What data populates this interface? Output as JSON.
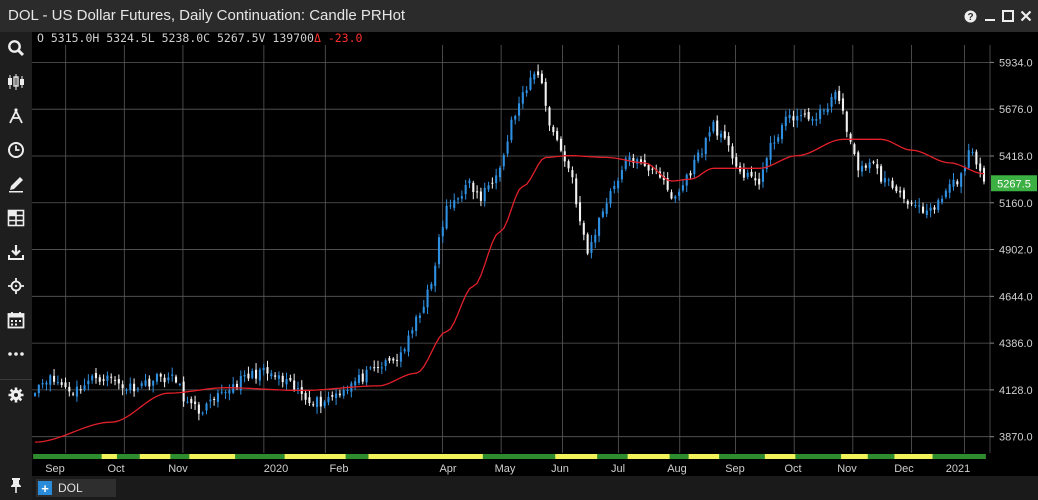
{
  "window": {
    "title": "DOL - US Dollar Futures, Daily Continuation: Candle PRHot"
  },
  "ohlc_bar": {
    "text": "O 5315.0H 5324.5L 5238.0C 5267.5V 139700",
    "delta_symbol": "Δ",
    "change": "-23.0"
  },
  "sidebar": {
    "tools": [
      "search-icon",
      "candles-icon",
      "studies-icon",
      "clock-icon",
      "pen-icon",
      "grid-icon",
      "download-icon",
      "crosshair-icon",
      "calendar-icon",
      "more-icon",
      "settings-icon",
      "pin-icon"
    ]
  },
  "tabs": [
    {
      "label": "DOL",
      "add_symbol": "+"
    }
  ],
  "colors": {
    "up_candle": "#2f8fe0",
    "down_candle": "#f2f2f2",
    "moving_average": "#e0202a",
    "grid": "#5a5a5a",
    "last_price_bg": "#3cb043",
    "session_green": "#2e8b2e",
    "session_yellow": "#f2f25a"
  },
  "chart_data": {
    "type": "candlestick",
    "title": "DOL - US Dollar Futures, Daily Continuation: Candle PRHot",
    "ylim": [
      3780,
      6030
    ],
    "y_ticks": [
      "5934.0",
      "5676.0",
      "5418.0",
      "5160.0",
      "4902.0",
      "4644.0",
      "4386.0",
      "4128.0",
      "3870.0"
    ],
    "x_labels": [
      "Sep",
      "Oct",
      "Nov",
      "2020",
      "Feb",
      "Apr",
      "May",
      "Jun",
      "Jul",
      "Aug",
      "Sep",
      "Oct",
      "Nov",
      "Dec",
      "2021"
    ],
    "last_price": "5267.5",
    "legend": "none",
    "grid": true,
    "close_path": [
      [
        0,
        4140
      ],
      [
        3,
        4195
      ],
      [
        6,
        4170
      ],
      [
        10,
        4120
      ],
      [
        13,
        4160
      ],
      [
        16,
        4200
      ],
      [
        20,
        4190
      ],
      [
        24,
        4140
      ],
      [
        28,
        4160
      ],
      [
        33,
        4200
      ],
      [
        37,
        4180
      ],
      [
        40,
        4050
      ],
      [
        43,
        4010
      ],
      [
        47,
        4060
      ],
      [
        51,
        4140
      ],
      [
        55,
        4190
      ],
      [
        59,
        4230
      ],
      [
        63,
        4200
      ],
      [
        67,
        4150
      ],
      [
        71,
        4090
      ],
      [
        75,
        4060
      ],
      [
        79,
        4110
      ],
      [
        83,
        4160
      ],
      [
        87,
        4210
      ],
      [
        91,
        4260
      ],
      [
        95,
        4300
      ],
      [
        98,
        4400
      ],
      [
        101,
        4560
      ],
      [
        104,
        4700
      ],
      [
        106,
        4950
      ],
      [
        108,
        5120
      ],
      [
        111,
        5200
      ],
      [
        114,
        5260
      ],
      [
        117,
        5180
      ],
      [
        120,
        5300
      ],
      [
        123,
        5420
      ],
      [
        125,
        5600
      ],
      [
        127,
        5700
      ],
      [
        129,
        5780
      ],
      [
        131,
        5890
      ],
      [
        133,
        5820
      ],
      [
        135,
        5600
      ],
      [
        138,
        5450
      ],
      [
        141,
        5300
      ],
      [
        143,
        5050
      ],
      [
        145,
        4880
      ],
      [
        147,
        5000
      ],
      [
        150,
        5180
      ],
      [
        153,
        5300
      ],
      [
        156,
        5420
      ],
      [
        158,
        5380
      ],
      [
        160,
        5350
      ],
      [
        163,
        5360
      ],
      [
        165,
        5260
      ],
      [
        167,
        5180
      ],
      [
        169,
        5220
      ],
      [
        171,
        5300
      ],
      [
        174,
        5420
      ],
      [
        176,
        5500
      ],
      [
        178,
        5600
      ],
      [
        180,
        5520
      ],
      [
        183,
        5420
      ],
      [
        186,
        5300
      ],
      [
        190,
        5280
      ],
      [
        193,
        5460
      ],
      [
        196,
        5590
      ],
      [
        199,
        5640
      ],
      [
        203,
        5620
      ],
      [
        207,
        5660
      ],
      [
        210,
        5780
      ],
      [
        213,
        5580
      ],
      [
        216,
        5320
      ],
      [
        219,
        5400
      ],
      [
        222,
        5300
      ],
      [
        225,
        5250
      ],
      [
        228,
        5200
      ],
      [
        231,
        5130
      ],
      [
        234,
        5090
      ],
      [
        237,
        5150
      ],
      [
        240,
        5250
      ],
      [
        243,
        5300
      ],
      [
        245,
        5460
      ],
      [
        247,
        5360
      ],
      [
        249,
        5260
      ]
    ],
    "ma_path": [
      [
        0,
        3840
      ],
      [
        20,
        3950
      ],
      [
        35,
        4110
      ],
      [
        50,
        4140
      ],
      [
        70,
        4125
      ],
      [
        90,
        4150
      ],
      [
        100,
        4220
      ],
      [
        108,
        4450
      ],
      [
        115,
        4700
      ],
      [
        122,
        5000
      ],
      [
        128,
        5250
      ],
      [
        134,
        5410
      ],
      [
        140,
        5420
      ],
      [
        150,
        5410
      ],
      [
        160,
        5380
      ],
      [
        167,
        5280
      ],
      [
        172,
        5290
      ],
      [
        178,
        5350
      ],
      [
        190,
        5350
      ],
      [
        200,
        5420
      ],
      [
        212,
        5510
      ],
      [
        222,
        5510
      ],
      [
        230,
        5450
      ],
      [
        240,
        5380
      ],
      [
        249,
        5320
      ]
    ],
    "sessions": [
      {
        "color": "green",
        "start_day": 0,
        "end_day": 18
      },
      {
        "color": "yellow",
        "start_day": 18,
        "end_day": 22
      },
      {
        "color": "green",
        "start_day": 22,
        "end_day": 28
      },
      {
        "color": "yellow",
        "start_day": 28,
        "end_day": 36
      },
      {
        "color": "green",
        "start_day": 36,
        "end_day": 41
      },
      {
        "color": "yellow",
        "start_day": 41,
        "end_day": 53
      },
      {
        "color": "green",
        "start_day": 53,
        "end_day": 66
      },
      {
        "color": "yellow",
        "start_day": 66,
        "end_day": 82
      },
      {
        "color": "green",
        "start_day": 82,
        "end_day": 88
      },
      {
        "color": "yellow",
        "start_day": 88,
        "end_day": 118
      },
      {
        "color": "green",
        "start_day": 118,
        "end_day": 137
      },
      {
        "color": "yellow",
        "start_day": 137,
        "end_day": 148
      },
      {
        "color": "green",
        "start_day": 148,
        "end_day": 156
      },
      {
        "color": "yellow",
        "start_day": 156,
        "end_day": 167
      },
      {
        "color": "green",
        "start_day": 167,
        "end_day": 172
      },
      {
        "color": "yellow",
        "start_day": 172,
        "end_day": 180
      },
      {
        "color": "green",
        "start_day": 180,
        "end_day": 192
      },
      {
        "color": "yellow",
        "start_day": 192,
        "end_day": 200
      },
      {
        "color": "green",
        "start_day": 200,
        "end_day": 212
      },
      {
        "color": "yellow",
        "start_day": 212,
        "end_day": 219
      },
      {
        "color": "green",
        "start_day": 219,
        "end_day": 226
      },
      {
        "color": "yellow",
        "start_day": 226,
        "end_day": 236
      },
      {
        "color": "green",
        "start_day": 236,
        "end_day": 249
      }
    ]
  }
}
